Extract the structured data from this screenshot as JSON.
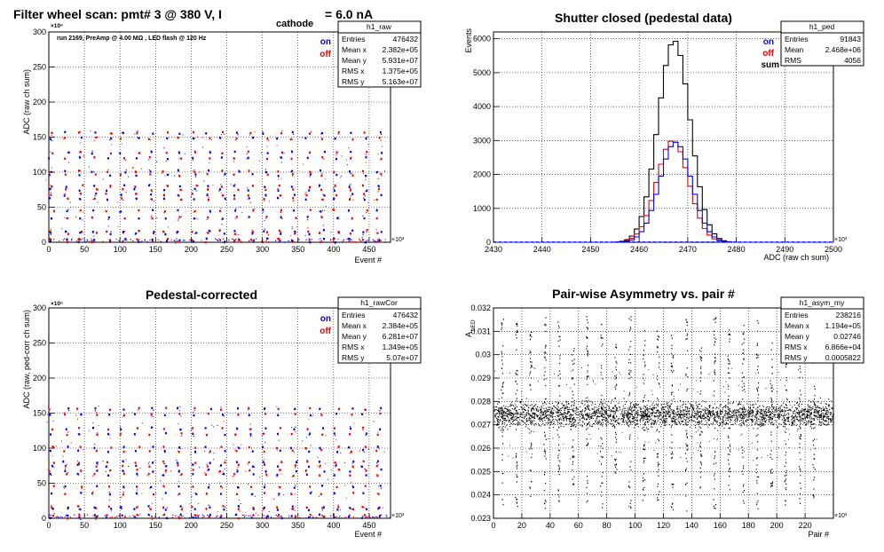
{
  "colors": {
    "on": "#0000ee",
    "off": "#ee0000",
    "sum": "#000000",
    "axis": "#000000"
  },
  "chart_data": [
    {
      "id": "raw",
      "type": "scatter",
      "title": "Filter wheel scan: pmt#   3 @   380 V, I",
      "title_sub": "cathode",
      "title_tail": "= 6.0 nA",
      "annotation": "run 2169, PreAmp @ 4.00 MΩ , LED flash @  120 Hz",
      "xlabel": "Event #",
      "ylabel": "ADC (raw ch sum)",
      "x_multiplier": "×10³",
      "y_multiplier": "×10⁶",
      "xlim": [
        0,
        480
      ],
      "ylim": [
        0,
        300
      ],
      "xticks": [
        0,
        50,
        100,
        150,
        200,
        250,
        300,
        350,
        400,
        450
      ],
      "yticks": [
        0,
        50,
        100,
        150,
        200,
        250,
        300
      ],
      "legend": [
        {
          "label": "on",
          "color": "#0000ee"
        },
        {
          "label": "off",
          "color": "#ee0000"
        }
      ],
      "stats_box": {
        "title": "h1_raw",
        "rows": [
          {
            "label": "Entries",
            "value": "476432"
          },
          {
            "label": "Mean x",
            "value": "2.382e+05"
          },
          {
            "label": "Mean y",
            "value": "5.931e+07"
          },
          {
            "label": "RMS x",
            "value": "1.375e+05"
          },
          {
            "label": "RMS y",
            "value": "5.163e+07"
          }
        ]
      },
      "levels": [
        1,
        4,
        13,
        16,
        35,
        45,
        62,
        68,
        75,
        80,
        96,
        101,
        120,
        128,
        148,
        156
      ],
      "blocks_x": [
        4,
        24,
        44,
        64,
        84,
        104,
        124,
        144,
        164,
        184,
        204,
        224,
        244,
        264,
        284,
        304,
        324,
        344,
        364,
        384,
        404,
        424,
        444,
        464
      ],
      "grid": true
    },
    {
      "id": "ped",
      "type": "histogram",
      "title": "Shutter closed (pedestal data)",
      "xlabel": "ADC (raw ch sum)",
      "ylabel": "Events",
      "x_multiplier": "×10³",
      "xlim": [
        2430,
        2500
      ],
      "ylim": [
        0,
        6200
      ],
      "xticks": [
        2430,
        2440,
        2450,
        2460,
        2470,
        2480,
        2490,
        2500
      ],
      "yticks": [
        0,
        1000,
        2000,
        3000,
        4000,
        5000,
        6000
      ],
      "legend": [
        {
          "label": "on",
          "color": "#0000ee"
        },
        {
          "label": "off",
          "color": "#ee0000"
        },
        {
          "label": "sum",
          "color": "#000000"
        }
      ],
      "stats_box": {
        "title": "h1_ped",
        "rows": [
          {
            "label": "Entries",
            "value": "91843"
          },
          {
            "label": "Mean",
            "value": "2.468e+06"
          },
          {
            "label": "RMS",
            "value": "4056"
          }
        ]
      },
      "histogram": {
        "center": 2467.2,
        "sigma": 3.3,
        "peak_sum": 5950,
        "peak_on": 2950,
        "peak_off": 3000
      },
      "grid": true
    },
    {
      "id": "rawCor",
      "type": "scatter",
      "title": "Pedestal-corrected",
      "xlabel": "Event #",
      "ylabel": "ADC (raw, ped-corr ch sum)",
      "x_multiplier": "×10³",
      "y_multiplier": "×10⁶",
      "xlim": [
        0,
        480
      ],
      "ylim": [
        0,
        300
      ],
      "xticks": [
        0,
        50,
        100,
        150,
        200,
        250,
        300,
        350,
        400,
        450
      ],
      "yticks": [
        0,
        50,
        100,
        150,
        200,
        250,
        300
      ],
      "legend": [
        {
          "label": "on",
          "color": "#0000ee"
        },
        {
          "label": "off",
          "color": "#ee0000"
        }
      ],
      "stats_box": {
        "title": "h1_rawCor",
        "rows": [
          {
            "label": "Entries",
            "value": "476432"
          },
          {
            "label": "Mean x",
            "value": "2.384e+05"
          },
          {
            "label": "Mean y",
            "value": "6.281e+07"
          },
          {
            "label": "RMS x",
            "value": "1.349e+05"
          },
          {
            "label": "RMS y",
            "value": "5.07e+07"
          }
        ]
      },
      "levels": [
        1,
        4,
        13,
        16,
        35,
        45,
        62,
        68,
        75,
        80,
        96,
        101,
        120,
        128,
        148,
        156
      ],
      "blocks_x": [
        4,
        24,
        44,
        64,
        84,
        104,
        124,
        144,
        164,
        184,
        204,
        224,
        244,
        264,
        284,
        304,
        324,
        344,
        364,
        384,
        404,
        424,
        444,
        464
      ],
      "grid": true
    },
    {
      "id": "asym",
      "type": "scatter",
      "title": "Pair-wise Asymmetry vs. pair #",
      "xlabel": "Pair #",
      "ylabel": "A",
      "ylabel_sub": "LED",
      "x_multiplier": "×10³",
      "xlim": [
        0,
        240
      ],
      "ylim": [
        0.023,
        0.032
      ],
      "xticks": [
        0,
        20,
        40,
        60,
        80,
        100,
        120,
        140,
        160,
        180,
        200,
        220
      ],
      "yticks": [
        0.023,
        0.024,
        0.025,
        0.026,
        0.027,
        0.028,
        0.029,
        0.03,
        0.031,
        0.032
      ],
      "stats_box": {
        "title": "h1_asym_my",
        "rows": [
          {
            "label": "Entries",
            "value": "238216"
          },
          {
            "label": "Mean x",
            "value": "1.194e+05"
          },
          {
            "label": "Mean y",
            "value": "0.02746"
          },
          {
            "label": "RMS x",
            "value": "6.866e+04"
          },
          {
            "label": "RMS y",
            "value": "0.0005822"
          }
        ]
      },
      "band": {
        "center": 0.02746,
        "rms": 0.00045
      },
      "spikes_x": [
        6,
        16,
        26,
        36,
        46,
        56,
        66,
        76,
        86,
        96,
        106,
        116,
        126,
        136,
        146,
        156,
        166,
        176,
        186,
        196,
        206,
        216,
        226
      ],
      "grid": true
    }
  ]
}
